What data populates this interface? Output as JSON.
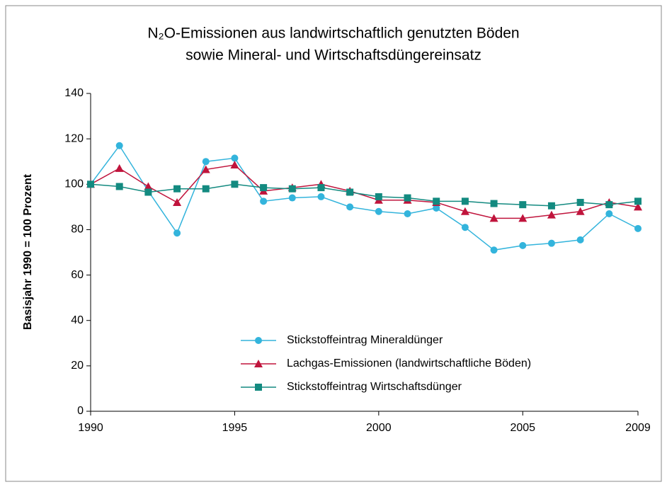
{
  "chart_data": {
    "type": "line",
    "title": [
      "N₂O-Emissionen aus landwirtschaftlich genutzten Böden",
      "sowie Mineral- und Wirtschaftsdüngereinsatz"
    ],
    "y_label": "Basisjahr 1990 = 100 Prozent",
    "x": [
      1990,
      1991,
      1992,
      1993,
      1994,
      1995,
      1996,
      1997,
      1998,
      1999,
      2000,
      2001,
      2002,
      2003,
      2004,
      2005,
      2006,
      2007,
      2008,
      2009
    ],
    "xlim": [
      1990,
      2009
    ],
    "xticks": [
      1990,
      1995,
      2000,
      2005,
      2009
    ],
    "ylim": [
      0,
      140
    ],
    "yticks": [
      0,
      20,
      40,
      60,
      80,
      100,
      120,
      140
    ],
    "legend_position": "lower center",
    "grid": false,
    "series": [
      {
        "name": "Stickstoffeintrag Mineraldünger",
        "color": "#33b4dc",
        "marker": "circle",
        "values": [
          100,
          117,
          97,
          78.5,
          110,
          111.5,
          92.5,
          94,
          94.5,
          90,
          88,
          87,
          89.5,
          81,
          71,
          73,
          74,
          75.5,
          87,
          80.5
        ]
      },
      {
        "name": "Lachgas-Emissionen (landwirtschaftliche Böden)",
        "color": "#c0143c",
        "marker": "triangle",
        "values": [
          100,
          107,
          99,
          92,
          106.5,
          108.5,
          97,
          98.5,
          100,
          97,
          93,
          93,
          92,
          88,
          85,
          85,
          86.5,
          88,
          92,
          90
        ]
      },
      {
        "name": "Stickstoffeintrag Wirtschaftsdünger",
        "color": "#138a80",
        "marker": "square",
        "values": [
          100,
          99,
          96.5,
          98,
          98,
          100,
          98.5,
          98,
          98.5,
          96.5,
          94.5,
          94,
          92.5,
          92.5,
          91.5,
          91,
          90.5,
          92,
          91,
          92.5
        ]
      }
    ]
  }
}
